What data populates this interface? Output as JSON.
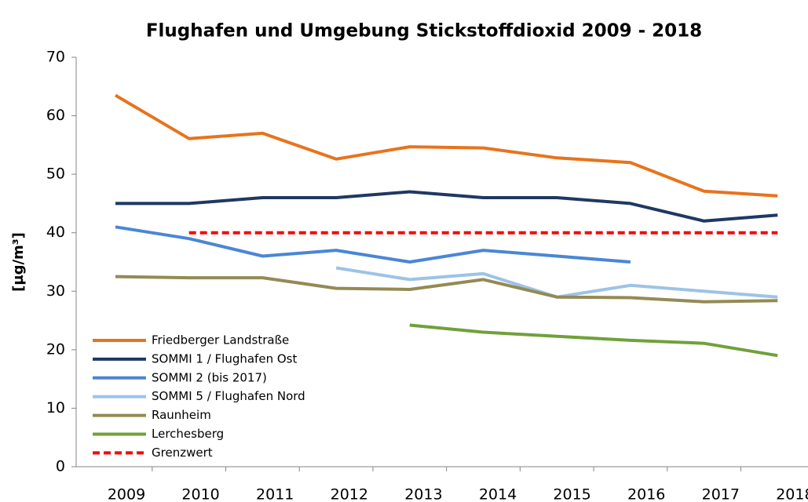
{
  "chart_data": {
    "type": "line",
    "title": "Flughafen und Umgebung Stickstoffdioxid 2009 - 2018",
    "y_label": "[µg/m³]",
    "categories": [
      "2009",
      "2010",
      "2011",
      "2012",
      "2013",
      "2014",
      "2015",
      "2016",
      "2017",
      "2018"
    ],
    "ylim": [
      0,
      70
    ],
    "yticks": [
      0,
      10,
      20,
      30,
      40,
      50,
      60,
      70
    ],
    "legend": "lower-left",
    "series": [
      {
        "name": "Friedberger Landstraße",
        "color": "#e8731c",
        "values": [
          63.5,
          56.1,
          57,
          52.6,
          54.7,
          54.5,
          52.8,
          52,
          47.1,
          46.3
        ]
      },
      {
        "name": "SOMMI 1 / Flughafen Ost",
        "color": "#1f3864",
        "values": [
          45,
          45,
          46,
          46,
          47,
          46,
          46,
          45,
          42,
          43
        ]
      },
      {
        "name": "SOMMI 2 (bis 2017)",
        "color": "#4a86d6",
        "values": [
          41,
          39,
          36,
          37,
          35,
          37,
          36,
          35,
          null,
          null
        ]
      },
      {
        "name": "SOMMI 5 / Flughafen Nord",
        "color": "#9dc3e6",
        "values": [
          null,
          null,
          null,
          34,
          32,
          33,
          29,
          31,
          30,
          29
        ]
      },
      {
        "name": "Raunheim",
        "color": "#948a54",
        "values": [
          32.5,
          32.3,
          32.3,
          30.5,
          30.3,
          32,
          29,
          28.9,
          28.2,
          28.4
        ]
      },
      {
        "name": "Lerchesberg",
        "color": "#70a13a",
        "values": [
          null,
          null,
          null,
          null,
          24.2,
          23,
          22.3,
          21.6,
          21.1,
          19
        ]
      },
      {
        "name": "Grenzwert",
        "color": "#ff0000",
        "dashed": true,
        "values": [
          null,
          40,
          40,
          40,
          40,
          40,
          40,
          40,
          40,
          40
        ]
      }
    ]
  }
}
